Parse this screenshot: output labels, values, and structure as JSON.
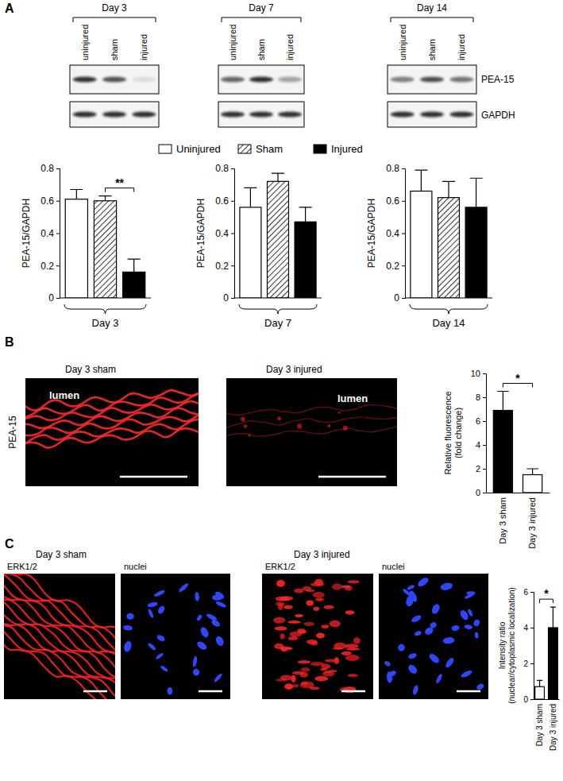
{
  "figure": {
    "panel_labels": [
      "A",
      "B",
      "C"
    ],
    "blots": {
      "days": [
        "Day 3",
        "Day 7",
        "Day 14"
      ],
      "lanes": [
        "uninjured",
        "sham",
        "injured"
      ],
      "proteins": [
        "PEA-15",
        "GAPDH"
      ]
    },
    "panel_b_images": {
      "titles": [
        "Day 3  sham",
        "Day 3 injured"
      ],
      "stain": "PEA-15",
      "lumen": "lumen"
    },
    "panel_c_images": {
      "titles": [
        "Day 3  sham",
        "Day 3 injured"
      ],
      "channels": [
        "ERK1/2",
        "nuclei"
      ]
    }
  },
  "chart_data": [
    {
      "type": "bar",
      "categories": [
        "Day 3"
      ],
      "y_label": "PEA-15/GAPDH",
      "ylim": [
        0,
        0.8
      ],
      "yticks": [
        0,
        0.2,
        0.4,
        0.6,
        0.8
      ],
      "legend": "top",
      "series": [
        {
          "name": "Uninjured",
          "color": "#ffffff",
          "values": [
            0.61
          ],
          "errors": [
            0.06
          ]
        },
        {
          "name": "Sham",
          "color": "#ffffff",
          "values": [
            0.6
          ],
          "errors": [
            0.03
          ]
        },
        {
          "name": "Injured",
          "color": "#000000",
          "values": [
            0.16
          ],
          "errors": [
            0.08
          ]
        }
      ],
      "annotations": [
        {
          "text": "**",
          "between": [
            "Sham",
            "Injured"
          ]
        }
      ]
    },
    {
      "type": "bar",
      "categories": [
        "Day 7"
      ],
      "y_label": "PEA-15/GAPDH",
      "ylim": [
        0,
        0.8
      ],
      "yticks": [
        0,
        0.2,
        0.4,
        0.6,
        0.8
      ],
      "series": [
        {
          "color": "#ffffff",
          "values": [
            0.56
          ],
          "errors": [
            0.12
          ]
        },
        {
          "color": "#ffffff",
          "values": [
            0.72
          ],
          "errors": [
            0.05
          ]
        },
        {
          "color": "#000000",
          "values": [
            0.47
          ],
          "errors": [
            0.09
          ]
        }
      ]
    },
    {
      "type": "bar",
      "categories": [
        "Day 14"
      ],
      "y_label": "PEA-15/GAPDH",
      "ylim": [
        0,
        0.8
      ],
      "yticks": [
        0,
        0.2,
        0.4,
        0.6,
        0.8
      ],
      "series": [
        {
          "color": "#ffffff",
          "values": [
            0.66
          ],
          "errors": [
            0.13
          ]
        },
        {
          "color": "#ffffff",
          "values": [
            0.62
          ],
          "errors": [
            0.1
          ]
        },
        {
          "color": "#000000",
          "values": [
            0.56
          ],
          "errors": [
            0.18
          ]
        }
      ]
    },
    {
      "type": "bar",
      "categories": [
        "Day 3 sham",
        "Day 3 injured"
      ],
      "values": [
        6.9,
        1.5
      ],
      "errors": [
        1.6,
        0.5
      ],
      "colors": [
        "#000000",
        "#ffffff"
      ],
      "y_label": [
        "Relative fluorescence",
        "(fold change)"
      ],
      "ylim": [
        0,
        10
      ],
      "yticks": [
        0,
        2,
        4,
        6,
        8,
        10
      ],
      "annotations": [
        {
          "text": "*",
          "between": [
            "Day 3 sham",
            "Day 3 injured"
          ]
        }
      ]
    },
    {
      "type": "bar",
      "categories": [
        "Day 3 sham",
        "Day 3 injured"
      ],
      "values": [
        0.7,
        4.0
      ],
      "errors": [
        0.35,
        1.15
      ],
      "colors": [
        "#ffffff",
        "#000000"
      ],
      "y_label": [
        "Intensity ratio",
        "(nuclear/cytoplasmic localization)"
      ],
      "ylim": [
        0,
        6
      ],
      "yticks": [
        0,
        2,
        4,
        6
      ],
      "annotations": [
        {
          "text": "*",
          "between": [
            "Day 3 sham",
            "Day 3 injured"
          ]
        }
      ]
    }
  ]
}
